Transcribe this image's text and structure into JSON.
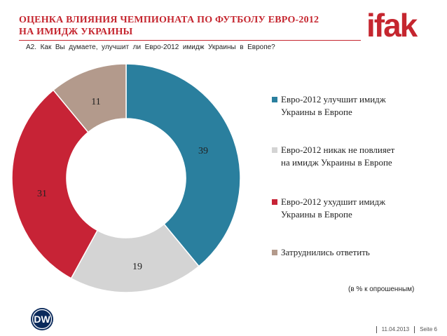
{
  "header": {
    "title_line1": "ОЦЕНКА ВЛИЯНИЯ ЧЕМПИОНАТА ПО ФУТБОЛУ ЕВРО-2012",
    "title_line2": "НА ИМИДЖ УКРАИНЫ",
    "question": "A2.  Как  Вы  думаете,  улучшит  ли  Евро-2012  имидж  Украины  в  Европе?"
  },
  "logo": {
    "text": "ifak",
    "icon": "ifak-logo",
    "color": "#c5262f"
  },
  "chart_data": {
    "type": "pie",
    "variant": "donut",
    "categories": [
      "Евро-2012 улучшит имидж Украины в Европе",
      "Евро-2012 никак не повлияет на имидж Украины в Европе",
      "Евро-2012 ухудшит имидж Украины в Европе",
      "Затруднились ответить"
    ],
    "values": [
      39,
      19,
      31,
      11
    ],
    "colors": [
      "#2a7f9e",
      "#d4d4d4",
      "#c72336",
      "#b39a8c"
    ],
    "legend_position": "right",
    "note": "(в % к опрошенным)"
  },
  "legend": [
    {
      "line1": "Евро-2012 улучшит имидж",
      "line2": "Украины в Европе"
    },
    {
      "line1": "Евро-2012 никак не повлияет",
      "line2": "на имидж Украины в Европе"
    },
    {
      "line1": "Евро-2012 ухудшит имидж",
      "line2": "Украины в Европе"
    },
    {
      "line1": "Затруднились ответить",
      "line2": ""
    }
  ],
  "footer": {
    "date": "11.04.2013",
    "page": "Seite 6",
    "brand_icon": "dw-logo"
  }
}
